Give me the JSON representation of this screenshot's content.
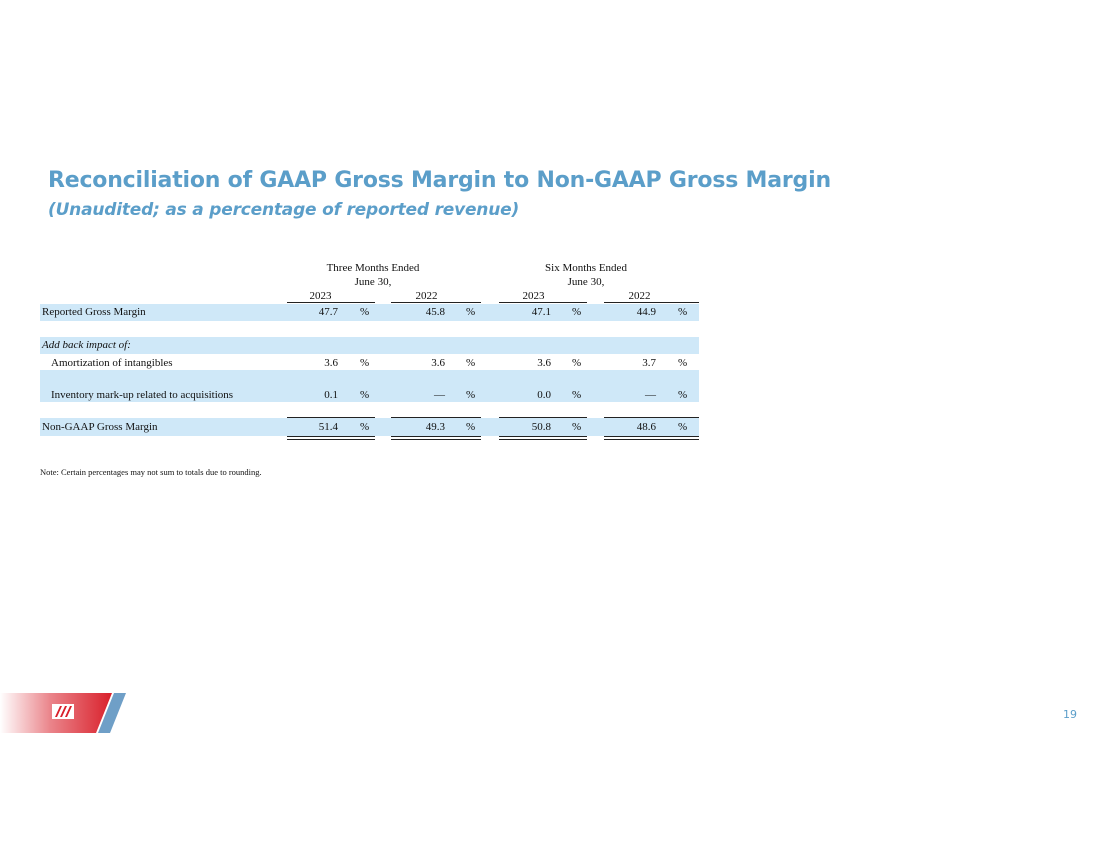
{
  "title": "Reconciliation of GAAP Gross Margin to Non-GAAP Gross Margin",
  "subtitle": "(Unaudited; as a percentage of reported revenue)",
  "table": {
    "group_headers": [
      {
        "line1": "Three Months Ended",
        "line2": "June 30,"
      },
      {
        "line1": "Six Months Ended",
        "line2": "June 30,"
      }
    ],
    "year_headers": [
      "2023",
      "2022",
      "2023",
      "2022"
    ],
    "percent_sign": "%",
    "rows": [
      {
        "label": "Reported Gross Margin",
        "values": [
          "47.7",
          "45.8",
          "47.1",
          "44.9"
        ]
      },
      {
        "label": "Add back impact of:"
      },
      {
        "label": "Amortization of intangibles",
        "values": [
          "3.6",
          "3.6",
          "3.6",
          "3.7"
        ]
      },
      {
        "label": "Inventory mark-up related to acquisitions",
        "values": [
          "0.1",
          "—",
          "0.0",
          "—"
        ]
      },
      {
        "label": "Non-GAAP Gross Margin",
        "values": [
          "51.4",
          "49.3",
          "50.8",
          "48.6"
        ]
      }
    ]
  },
  "note": "Note: Certain percentages may not sum to totals due to rounding.",
  "page_number": "19",
  "colors": {
    "title": "#5b9ec9",
    "band": "#cfe8f8",
    "logo_red": "#d9202b",
    "logo_blue": "#6f9fc7"
  },
  "logo": {
    "name": "company-logo-mark"
  }
}
